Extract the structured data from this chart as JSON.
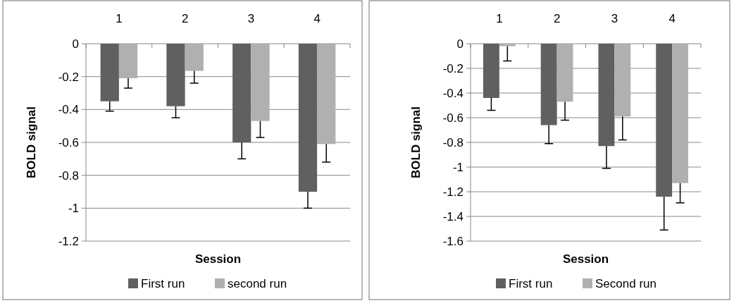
{
  "chart_data": [
    {
      "type": "bar",
      "xlabel": "Session",
      "ylabel": "BOLD signal",
      "categories": [
        "1",
        "2",
        "3",
        "4"
      ],
      "ylim": [
        -1.2,
        0
      ],
      "yticks": [
        -1.2,
        -1,
        -0.8,
        -0.6,
        -0.4,
        -0.2,
        0
      ],
      "grid": "y",
      "legend": "bottom",
      "series": [
        {
          "name": "First run",
          "color": "#606060",
          "values": [
            -0.35,
            -0.38,
            -0.6,
            -0.9
          ],
          "errors": [
            [
              -0.41,
              -0.35
            ],
            [
              -0.45,
              -0.38
            ],
            [
              -0.7,
              -0.6
            ],
            [
              -1.0,
              -0.9
            ]
          ]
        },
        {
          "name": "second run",
          "color": "#b0b0b0",
          "values": [
            -0.21,
            -0.165,
            -0.47,
            -0.61
          ],
          "errors": [
            [
              -0.27,
              -0.21
            ],
            [
              -0.24,
              -0.165
            ],
            [
              -0.57,
              -0.47
            ],
            [
              -0.72,
              -0.61
            ]
          ]
        }
      ]
    },
    {
      "type": "bar",
      "xlabel": "Session",
      "ylabel": "BOLD signal",
      "categories": [
        "1",
        "2",
        "3",
        "4"
      ],
      "ylim": [
        -1.6,
        0
      ],
      "yticks": [
        -1.6,
        -1.4,
        -1.2,
        -1,
        -0.8,
        -0.6,
        -0.4,
        -0.2,
        0
      ],
      "grid": "y",
      "legend": "bottom",
      "series": [
        {
          "name": "First run",
          "color": "#606060",
          "values": [
            -0.44,
            -0.66,
            -0.83,
            -1.24
          ],
          "errors": [
            [
              -0.54,
              -0.44
            ],
            [
              -0.81,
              -0.66
            ],
            [
              -1.01,
              -0.83
            ],
            [
              -1.51,
              -1.24
            ]
          ]
        },
        {
          "name": "Second run",
          "color": "#b0b0b0",
          "values": [
            -0.02,
            -0.47,
            -0.59,
            -1.13
          ],
          "errors": [
            [
              -0.14,
              -0.02
            ],
            [
              -0.62,
              -0.47
            ],
            [
              -0.78,
              -0.59
            ],
            [
              -1.29,
              -1.13
            ]
          ]
        }
      ]
    }
  ]
}
